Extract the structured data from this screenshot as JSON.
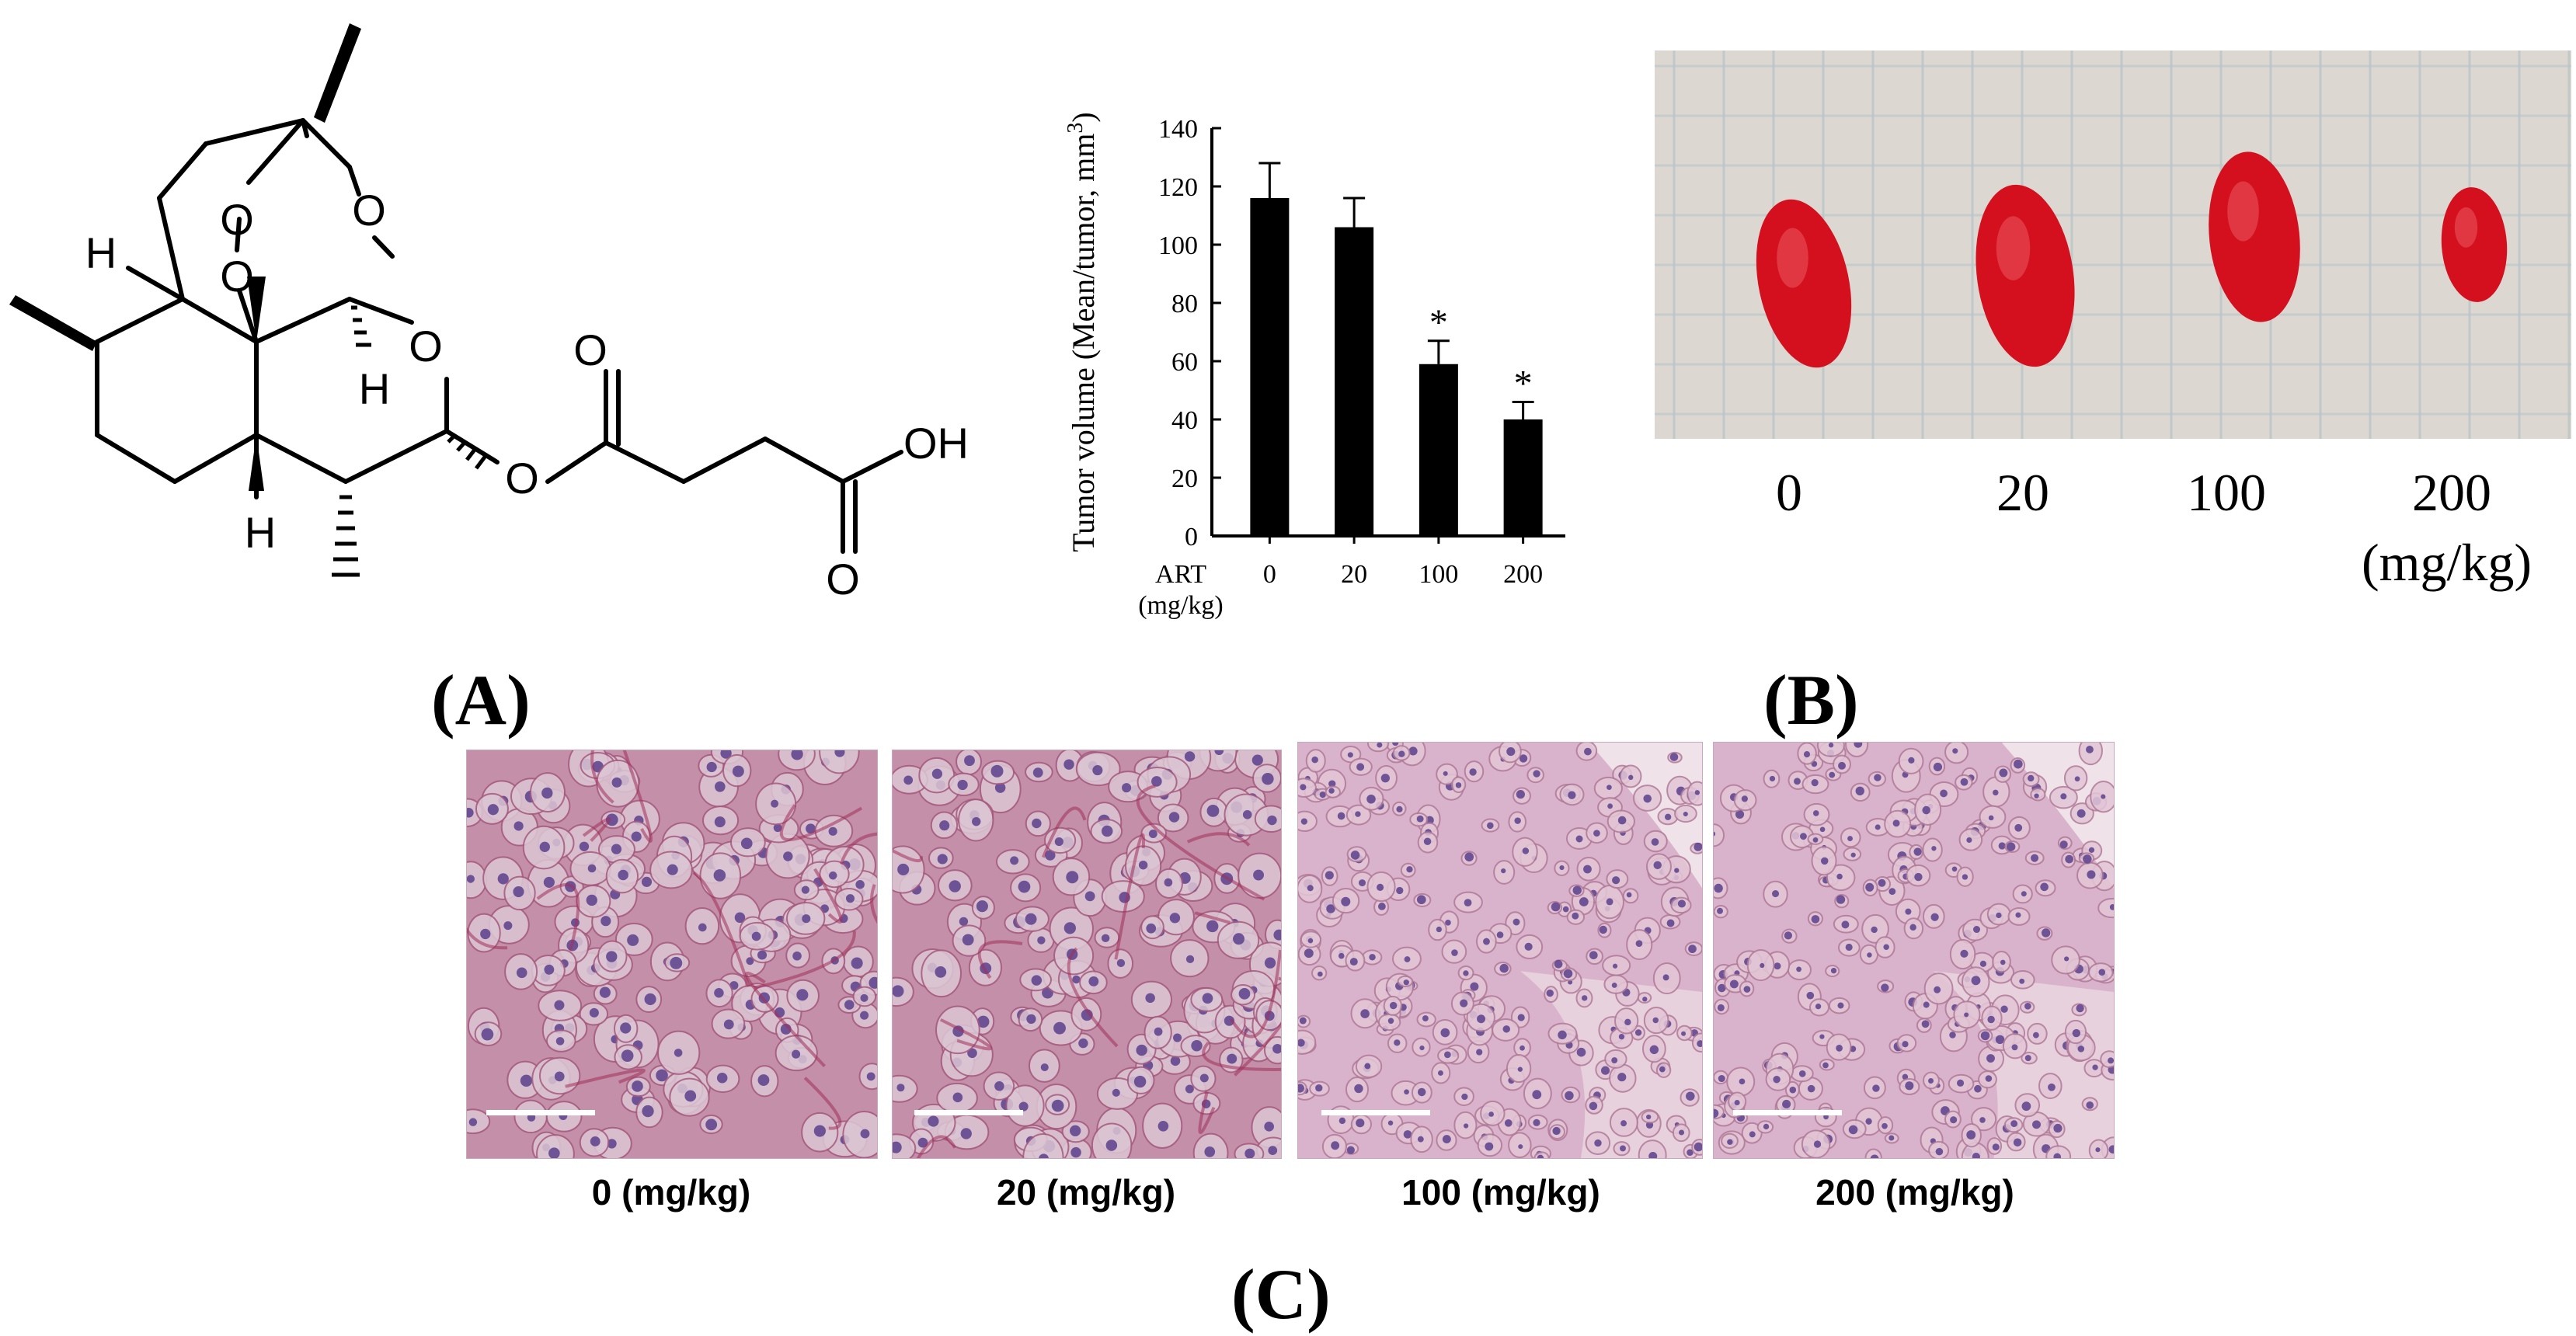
{
  "panel_labels": {
    "a": "(A)",
    "b": "(B)",
    "c": "(C)"
  },
  "molecule": {
    "atoms": {
      "o1": "O",
      "o2": "O",
      "o3": "O",
      "o4": "O",
      "o5": "O",
      "o6": "O",
      "h1": "H",
      "h2": "H",
      "h3": "H",
      "oh": "OH"
    }
  },
  "chart_data": {
    "type": "bar",
    "categories": [
      "0",
      "20",
      "100",
      "200"
    ],
    "values": [
      116,
      106,
      59,
      40
    ],
    "errors": [
      12,
      10,
      8,
      6
    ],
    "significance": [
      "",
      "",
      "*",
      "*"
    ],
    "title": "",
    "xlabel": "ART\n(mg/kg)",
    "ylabel": "Tumor volume (Mean/tumor, mm3)",
    "ylim": [
      0,
      140
    ],
    "yticks": [
      0,
      20,
      40,
      60,
      80,
      100,
      120,
      140
    ],
    "grid": false,
    "bar_color": "#000000"
  },
  "tumor_photo": {
    "doses": [
      "0",
      "20",
      "100",
      "200"
    ],
    "unit": "(mg/kg)",
    "grid_color": "#b8c6c9",
    "tumor_color": "#d4101e"
  },
  "histology": {
    "captions": [
      "0 (mg/kg)",
      "20 (mg/kg)",
      "100 (mg/kg)",
      "200 (mg/kg)"
    ]
  }
}
